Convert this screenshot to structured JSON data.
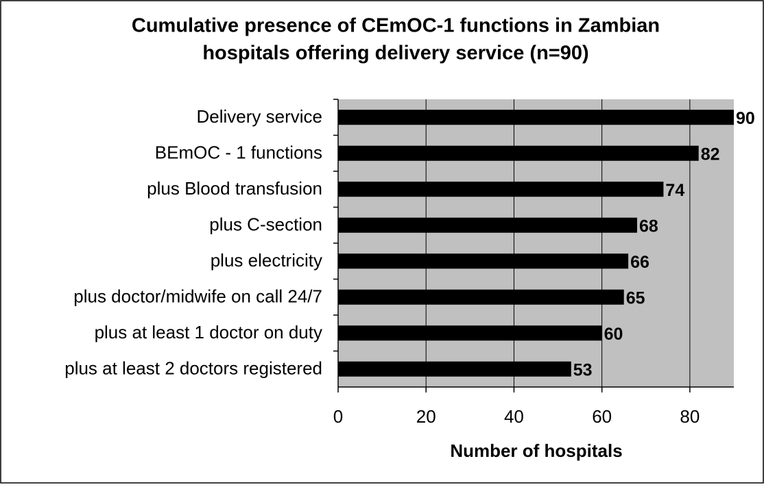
{
  "chart_data": {
    "type": "bar",
    "orientation": "horizontal",
    "title": [
      "Cumulative presence of CEmOC-1 functions in Zambian",
      "hospitals offering delivery service (n=90)"
    ],
    "x_label": "Number of hospitals",
    "categories": [
      "Delivery service",
      "BEmOC - 1 functions",
      "plus Blood transfusion",
      "plus C-section",
      "plus electricity",
      "plus doctor/midwife on call 24/7",
      "plus at least 1 doctor on duty",
      "plus at least 2 doctors registered"
    ],
    "values": [
      90,
      82,
      74,
      68,
      66,
      65,
      60,
      53
    ],
    "color": "#000000",
    "xlim": [
      0,
      90
    ],
    "xticks": [
      0,
      20,
      40,
      60,
      80
    ],
    "grid": true
  }
}
